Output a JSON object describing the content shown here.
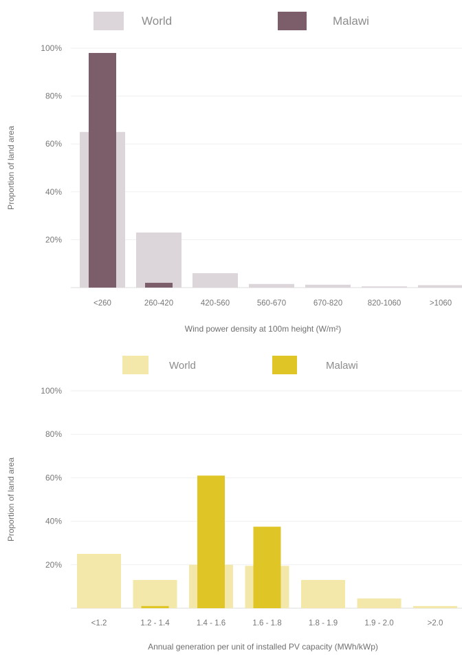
{
  "chart_data": [
    {
      "type": "bar",
      "categories": [
        "<260",
        "260-420",
        "420-560",
        "560-670",
        "670-820",
        "820-1060",
        ">1060"
      ],
      "series": [
        {
          "name": "World",
          "values": [
            65,
            23,
            6,
            1.5,
            1.2,
            0.5,
            1
          ]
        },
        {
          "name": "Malawi",
          "values": [
            98,
            2,
            0,
            0,
            0,
            0,
            0
          ]
        }
      ],
      "xlabel": "Wind power density at 100m height (W/m²)",
      "ylabel": "Proportion of land area",
      "ylim": [
        0,
        100
      ],
      "yticks": [
        "100%",
        "80%",
        "60%",
        "40%",
        "20%"
      ],
      "grid": true,
      "legend": "top",
      "colors": {
        "World": "#dcd5d9",
        "Malawi": "#7b5e69"
      }
    },
    {
      "type": "bar",
      "categories": [
        "<1.2",
        "1.2 - 1.4",
        "1.4 - 1.6",
        "1.6 - 1.8",
        "1.8 - 1.9",
        "1.9 - 2.0",
        ">2.0"
      ],
      "series": [
        {
          "name": "World",
          "values": [
            25,
            13,
            20,
            19.5,
            13,
            4.5,
            1
          ]
        },
        {
          "name": "Malawi",
          "values": [
            0,
            1,
            61,
            37.5,
            0,
            0,
            0
          ]
        }
      ],
      "xlabel": "Annual generation per unit of installed PV capacity (MWh/kWp)",
      "ylabel": "Proportion of land area",
      "ylim": [
        0,
        100
      ],
      "yticks": [
        "100%",
        "80%",
        "60%",
        "40%",
        "20%"
      ],
      "grid": true,
      "legend": "top",
      "colors": {
        "World": "#f3e8a9",
        "Malawi": "#dfc626"
      }
    }
  ]
}
